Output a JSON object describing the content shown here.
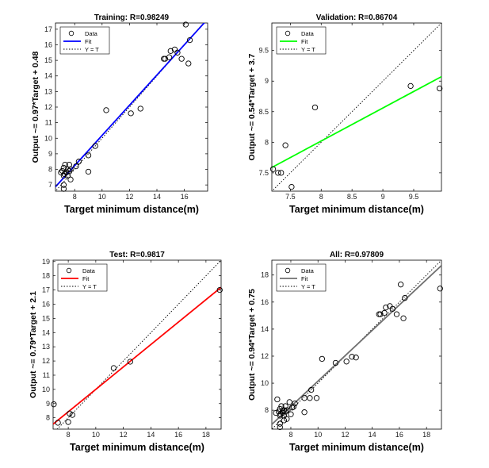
{
  "chart_data": [
    {
      "type": "scatter",
      "title": "Training: R=0.98249",
      "xlabel": "Target minimum distance(m)",
      "ylabel": "Output ~= 0.97*Target + 0.48",
      "xlim": [
        6.6,
        17.7
      ],
      "ylim": [
        6.6,
        17.4
      ],
      "xticks": [
        8,
        10,
        12,
        14,
        16
      ],
      "yticks": [
        7,
        8,
        9,
        10,
        11,
        12,
        13,
        14,
        15,
        16,
        17
      ],
      "grid": false,
      "legend": {
        "position": "top-left",
        "entries": [
          "Data",
          "Fit",
          "Y = T"
        ]
      },
      "fit": {
        "slope": 0.97,
        "intercept": 0.48,
        "color": "#0000ff"
      },
      "data": [
        {
          "x": 7.0,
          "y": 7.8
        },
        {
          "x": 7.1,
          "y": 7.9
        },
        {
          "x": 7.2,
          "y": 7.6
        },
        {
          "x": 7.2,
          "y": 8.1
        },
        {
          "x": 7.3,
          "y": 8.3
        },
        {
          "x": 7.25,
          "y": 7.7
        },
        {
          "x": 7.4,
          "y": 7.8
        },
        {
          "x": 7.5,
          "y": 8.0
        },
        {
          "x": 7.6,
          "y": 8.3
        },
        {
          "x": 7.6,
          "y": 7.9
        },
        {
          "x": 7.7,
          "y": 8.0
        },
        {
          "x": 7.5,
          "y": 7.6
        },
        {
          "x": 7.2,
          "y": 7.0
        },
        {
          "x": 7.2,
          "y": 6.75
        },
        {
          "x": 7.7,
          "y": 7.35
        },
        {
          "x": 8.1,
          "y": 8.2
        },
        {
          "x": 8.3,
          "y": 8.5
        },
        {
          "x": 9.0,
          "y": 8.9
        },
        {
          "x": 9.0,
          "y": 7.85
        },
        {
          "x": 9.5,
          "y": 9.5
        },
        {
          "x": 10.3,
          "y": 11.8
        },
        {
          "x": 12.1,
          "y": 11.6
        },
        {
          "x": 12.8,
          "y": 11.9
        },
        {
          "x": 14.5,
          "y": 15.1
        },
        {
          "x": 14.6,
          "y": 15.1
        },
        {
          "x": 14.9,
          "y": 15.2
        },
        {
          "x": 15.0,
          "y": 15.6
        },
        {
          "x": 15.3,
          "y": 15.7
        },
        {
          "x": 15.5,
          "y": 15.5
        },
        {
          "x": 15.8,
          "y": 15.1
        },
        {
          "x": 16.1,
          "y": 17.3
        },
        {
          "x": 16.3,
          "y": 14.8
        },
        {
          "x": 16.4,
          "y": 16.3
        }
      ]
    },
    {
      "type": "scatter",
      "title": "Validation: R=0.86704",
      "xlabel": "Target minimum distance(m)",
      "ylabel": "Output ~= 0.54*Target + 3.7",
      "xlim": [
        7.2,
        9.95
      ],
      "ylim": [
        7.2,
        9.95
      ],
      "xticks": [
        7.5,
        8,
        8.5,
        9,
        9.5
      ],
      "yticks": [
        7.5,
        8,
        8.5,
        9,
        9.5
      ],
      "grid": false,
      "legend": {
        "position": "top-left",
        "entries": [
          "Data",
          "Fit",
          "Y = T"
        ]
      },
      "fit": {
        "slope": 0.54,
        "intercept": 3.7,
        "color": "#00ff00"
      },
      "data": [
        {
          "x": 7.22,
          "y": 7.56
        },
        {
          "x": 7.3,
          "y": 7.5
        },
        {
          "x": 7.35,
          "y": 7.5
        },
        {
          "x": 7.42,
          "y": 7.95
        },
        {
          "x": 7.52,
          "y": 7.27
        },
        {
          "x": 7.9,
          "y": 8.57
        },
        {
          "x": 9.45,
          "y": 8.92
        },
        {
          "x": 9.92,
          "y": 8.88
        }
      ]
    },
    {
      "type": "scatter",
      "title": "Test: R=0.9817",
      "xlabel": "Target minimum distance(m)",
      "ylabel": "Output ~= 0.79*Target + 2.1",
      "xlim": [
        6.9,
        19.1
      ],
      "ylim": [
        7.2,
        19.1
      ],
      "xticks": [
        8,
        10,
        12,
        14,
        16,
        18
      ],
      "yticks": [
        8,
        9,
        10,
        11,
        12,
        13,
        14,
        15,
        16,
        17,
        18,
        19
      ],
      "grid": false,
      "legend": {
        "position": "top-left",
        "entries": [
          "Data",
          "Fit",
          "Y = T"
        ]
      },
      "fit": {
        "slope": 0.79,
        "intercept": 2.1,
        "color": "#ff0000"
      },
      "data": [
        {
          "x": 6.95,
          "y": 8.95
        },
        {
          "x": 7.25,
          "y": 7.65
        },
        {
          "x": 8.0,
          "y": 7.7
        },
        {
          "x": 8.1,
          "y": 8.3
        },
        {
          "x": 8.3,
          "y": 8.2
        },
        {
          "x": 11.3,
          "y": 11.5
        },
        {
          "x": 12.5,
          "y": 11.95
        },
        {
          "x": 19.0,
          "y": 17.0
        }
      ]
    },
    {
      "type": "scatter",
      "title": "All: R=0.97809",
      "xlabel": "Target minimum distance(m)",
      "ylabel": "Output ~= 0.94*Target + 0.75",
      "xlim": [
        6.6,
        19.1
      ],
      "ylim": [
        6.6,
        19.1
      ],
      "xticks": [
        8,
        10,
        12,
        14,
        16,
        18
      ],
      "yticks": [
        8,
        10,
        12,
        14,
        16,
        18
      ],
      "grid": false,
      "legend": {
        "position": "top-left",
        "entries": [
          "Data",
          "Fit",
          "Y = T"
        ]
      },
      "fit": {
        "slope": 0.94,
        "intercept": 0.75,
        "color": "#707070"
      },
      "data": [
        {
          "x": 6.9,
          "y": 7.8
        },
        {
          "x": 7.0,
          "y": 8.8
        },
        {
          "x": 7.1,
          "y": 7.9
        },
        {
          "x": 7.2,
          "y": 7.6
        },
        {
          "x": 7.2,
          "y": 8.1
        },
        {
          "x": 7.3,
          "y": 8.3
        },
        {
          "x": 7.25,
          "y": 7.7
        },
        {
          "x": 7.4,
          "y": 7.8
        },
        {
          "x": 7.5,
          "y": 8.0
        },
        {
          "x": 7.6,
          "y": 8.3
        },
        {
          "x": 7.6,
          "y": 7.9
        },
        {
          "x": 7.7,
          "y": 8.0
        },
        {
          "x": 7.5,
          "y": 7.6
        },
        {
          "x": 7.2,
          "y": 7.0
        },
        {
          "x": 7.2,
          "y": 6.75
        },
        {
          "x": 7.7,
          "y": 7.35
        },
        {
          "x": 7.4,
          "y": 7.95
        },
        {
          "x": 7.5,
          "y": 7.25
        },
        {
          "x": 7.9,
          "y": 8.6
        },
        {
          "x": 8.0,
          "y": 7.7
        },
        {
          "x": 8.1,
          "y": 8.2
        },
        {
          "x": 8.3,
          "y": 8.5
        },
        {
          "x": 8.2,
          "y": 8.25
        },
        {
          "x": 9.0,
          "y": 8.9
        },
        {
          "x": 9.0,
          "y": 7.85
        },
        {
          "x": 9.5,
          "y": 9.5
        },
        {
          "x": 9.4,
          "y": 8.9
        },
        {
          "x": 9.9,
          "y": 8.9
        },
        {
          "x": 10.3,
          "y": 11.8
        },
        {
          "x": 11.3,
          "y": 11.5
        },
        {
          "x": 12.1,
          "y": 11.6
        },
        {
          "x": 12.5,
          "y": 11.95
        },
        {
          "x": 12.8,
          "y": 11.9
        },
        {
          "x": 14.5,
          "y": 15.1
        },
        {
          "x": 14.6,
          "y": 15.1
        },
        {
          "x": 14.9,
          "y": 15.2
        },
        {
          "x": 15.0,
          "y": 15.6
        },
        {
          "x": 15.3,
          "y": 15.7
        },
        {
          "x": 15.5,
          "y": 15.5
        },
        {
          "x": 15.8,
          "y": 15.1
        },
        {
          "x": 16.1,
          "y": 17.3
        },
        {
          "x": 16.3,
          "y": 14.8
        },
        {
          "x": 16.4,
          "y": 16.3
        },
        {
          "x": 19.0,
          "y": 17.0
        }
      ]
    }
  ]
}
